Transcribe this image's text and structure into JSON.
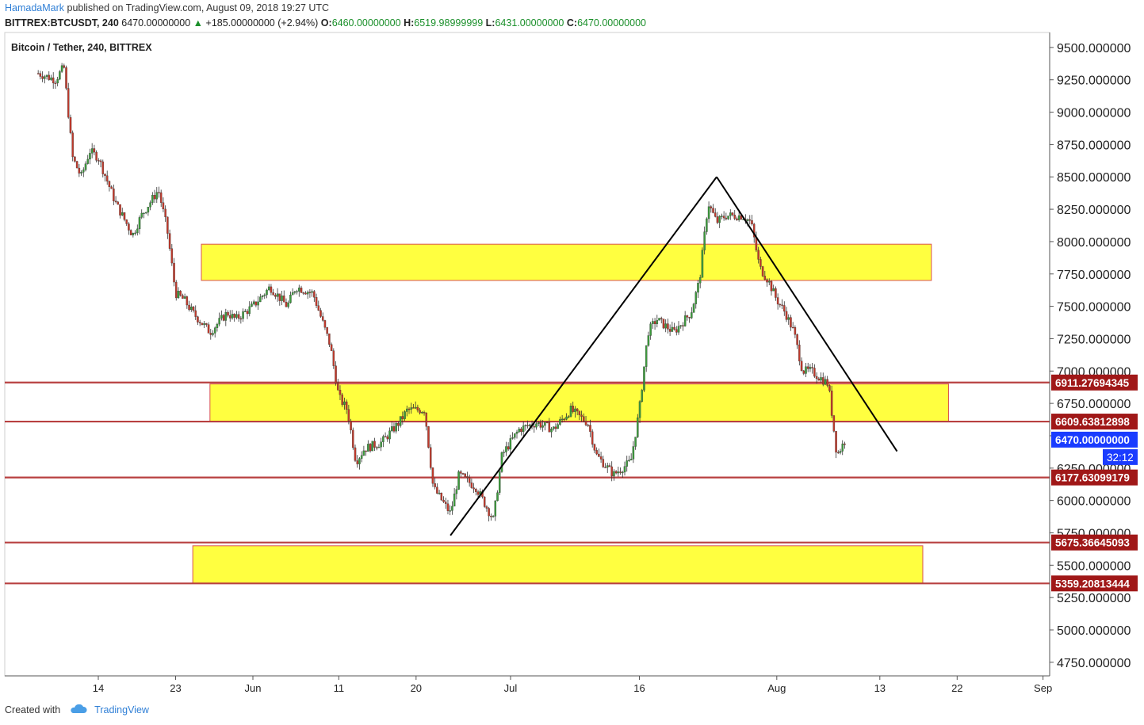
{
  "header": {
    "author": "HamadaMark",
    "published": "published on TradingView.com, August 09, 2018 19:27 UTC",
    "symbol": "BITTREX:BTCUSDT, 240",
    "last": "6470.00000000",
    "change": "+185.00000000 (+2.94%)",
    "o_label": "O:",
    "o_value": "6460.00000000",
    "h_label": "H:",
    "h_value": "6519.98999999",
    "l_label": "L:",
    "l_value": "6431.00000000",
    "c_label": "C:",
    "c_value": "6470.00000000"
  },
  "legend": "Bitcoin / Tether, 240, BITTREX",
  "footer": {
    "created_with": "Created with",
    "brand": "TradingView"
  },
  "colors": {
    "up": "#3c9b3c",
    "down": "#c0392b",
    "zone_fill": "#ffff40",
    "zone_border": "#d9534f",
    "level_line": "#b84040",
    "level_label_bg": "#a01818",
    "last_label_bg": "#1a3cff",
    "trend": "#000000"
  },
  "chart_data": {
    "type": "candlestick",
    "title": "Bitcoin / Tether, 240, BITTREX",
    "ylim": [
      4750,
      9500
    ],
    "y_ticks": [
      "9500.000000",
      "9250.000000",
      "9000.000000",
      "8750.000000",
      "8500.000000",
      "8250.000000",
      "8000.000000",
      "7750.000000",
      "7500.000000",
      "7250.000000",
      "7000.000000",
      "6750.000000",
      "6500.000000",
      "6250.000000",
      "6000.000000",
      "5750.000000",
      "5500.000000",
      "5250.000000",
      "5000.000000",
      "4750.000000"
    ],
    "x_ticks": [
      "14",
      "23",
      "Jun",
      "11",
      "20",
      "Jul",
      "16",
      "Aug",
      "13",
      "22",
      "Sep"
    ],
    "x_tick_dates": [
      "2018-05-14",
      "2018-05-23",
      "2018-06-01",
      "2018-06-11",
      "2018-06-20",
      "2018-07-01",
      "2018-07-16",
      "2018-08-01",
      "2018-08-13",
      "2018-08-22",
      "2018-09-01"
    ],
    "price_path": [
      [
        "2018-05-07",
        9300
      ],
      [
        "2018-05-09",
        9250
      ],
      [
        "2018-05-10",
        9350
      ],
      [
        "2018-05-11",
        8650
      ],
      [
        "2018-05-12",
        8500
      ],
      [
        "2018-05-13",
        8700
      ],
      [
        "2018-05-14",
        8650
      ],
      [
        "2018-05-16",
        8300
      ],
      [
        "2018-05-18",
        8050
      ],
      [
        "2018-05-19",
        8200
      ],
      [
        "2018-05-21",
        8400
      ],
      [
        "2018-05-22",
        8100
      ],
      [
        "2018-05-23",
        7600
      ],
      [
        "2018-05-24",
        7550
      ],
      [
        "2018-05-25",
        7450
      ],
      [
        "2018-05-27",
        7300
      ],
      [
        "2018-05-29",
        7450
      ],
      [
        "2018-05-30",
        7400
      ],
      [
        "2018-06-01",
        7500
      ],
      [
        "2018-06-03",
        7650
      ],
      [
        "2018-06-05",
        7500
      ],
      [
        "2018-06-06",
        7650
      ],
      [
        "2018-06-08",
        7600
      ],
      [
        "2018-06-10",
        7200
      ],
      [
        "2018-06-11",
        6800
      ],
      [
        "2018-06-12",
        6700
      ],
      [
        "2018-06-13",
        6300
      ],
      [
        "2018-06-14",
        6400
      ],
      [
        "2018-06-16",
        6450
      ],
      [
        "2018-06-18",
        6600
      ],
      [
        "2018-06-19",
        6700
      ],
      [
        "2018-06-20",
        6700
      ],
      [
        "2018-06-21",
        6700
      ],
      [
        "2018-06-22",
        6100
      ],
      [
        "2018-06-24",
        5900
      ],
      [
        "2018-06-25",
        6200
      ],
      [
        "2018-06-27",
        6100
      ],
      [
        "2018-06-29",
        5850
      ],
      [
        "2018-06-30",
        6350
      ],
      [
        "2018-07-02",
        6550
      ],
      [
        "2018-07-04",
        6600
      ],
      [
        "2018-07-06",
        6550
      ],
      [
        "2018-07-08",
        6700
      ],
      [
        "2018-07-10",
        6600
      ],
      [
        "2018-07-11",
        6350
      ],
      [
        "2018-07-13",
        6200
      ],
      [
        "2018-07-15",
        6300
      ],
      [
        "2018-07-16",
        6700
      ],
      [
        "2018-07-17",
        7300
      ],
      [
        "2018-07-18",
        7400
      ],
      [
        "2018-07-20",
        7300
      ],
      [
        "2018-07-22",
        7450
      ],
      [
        "2018-07-23",
        7700
      ],
      [
        "2018-07-24",
        8300
      ],
      [
        "2018-07-25",
        8150
      ],
      [
        "2018-07-26",
        8200
      ],
      [
        "2018-07-27",
        8200
      ],
      [
        "2018-07-28",
        8200
      ],
      [
        "2018-07-29",
        8150
      ],
      [
        "2018-07-30",
        7800
      ],
      [
        "2018-07-31",
        7700
      ],
      [
        "2018-08-01",
        7550
      ],
      [
        "2018-08-02",
        7450
      ],
      [
        "2018-08-03",
        7300
      ],
      [
        "2018-08-04",
        7000
      ],
      [
        "2018-08-05",
        7000
      ],
      [
        "2018-08-06",
        6950
      ],
      [
        "2018-08-07",
        6900
      ],
      [
        "2018-08-08",
        6350
      ],
      [
        "2018-08-09",
        6470
      ]
    ],
    "support_resistance_lines": [
      6911.27694345,
      6609.63812898,
      6177.63099179,
      5675.36645093,
      5359.20813444
    ],
    "level_labels": [
      "6911.27694345",
      "6609.63812898",
      "6177.63099179",
      "5675.36645093",
      "5359.20813444"
    ],
    "last_price": 6470.0,
    "last_price_label": "6470.00000000",
    "countdown_label": "32:12",
    "zones": [
      {
        "from": "2018-05-26",
        "to": "2018-08-19",
        "low": 7700,
        "high": 7980
      },
      {
        "from": "2018-05-27",
        "to": "2018-08-21",
        "low": 6610,
        "high": 6900
      },
      {
        "from": "2018-05-25",
        "to": "2018-08-18",
        "low": 5360,
        "high": 5650
      }
    ],
    "trendlines": [
      {
        "points": [
          [
            "2018-06-24",
            5730
          ],
          [
            "2018-07-25",
            8500
          ]
        ]
      },
      {
        "points": [
          [
            "2018-07-25",
            8500
          ],
          [
            "2018-08-15",
            6380
          ]
        ]
      }
    ]
  }
}
